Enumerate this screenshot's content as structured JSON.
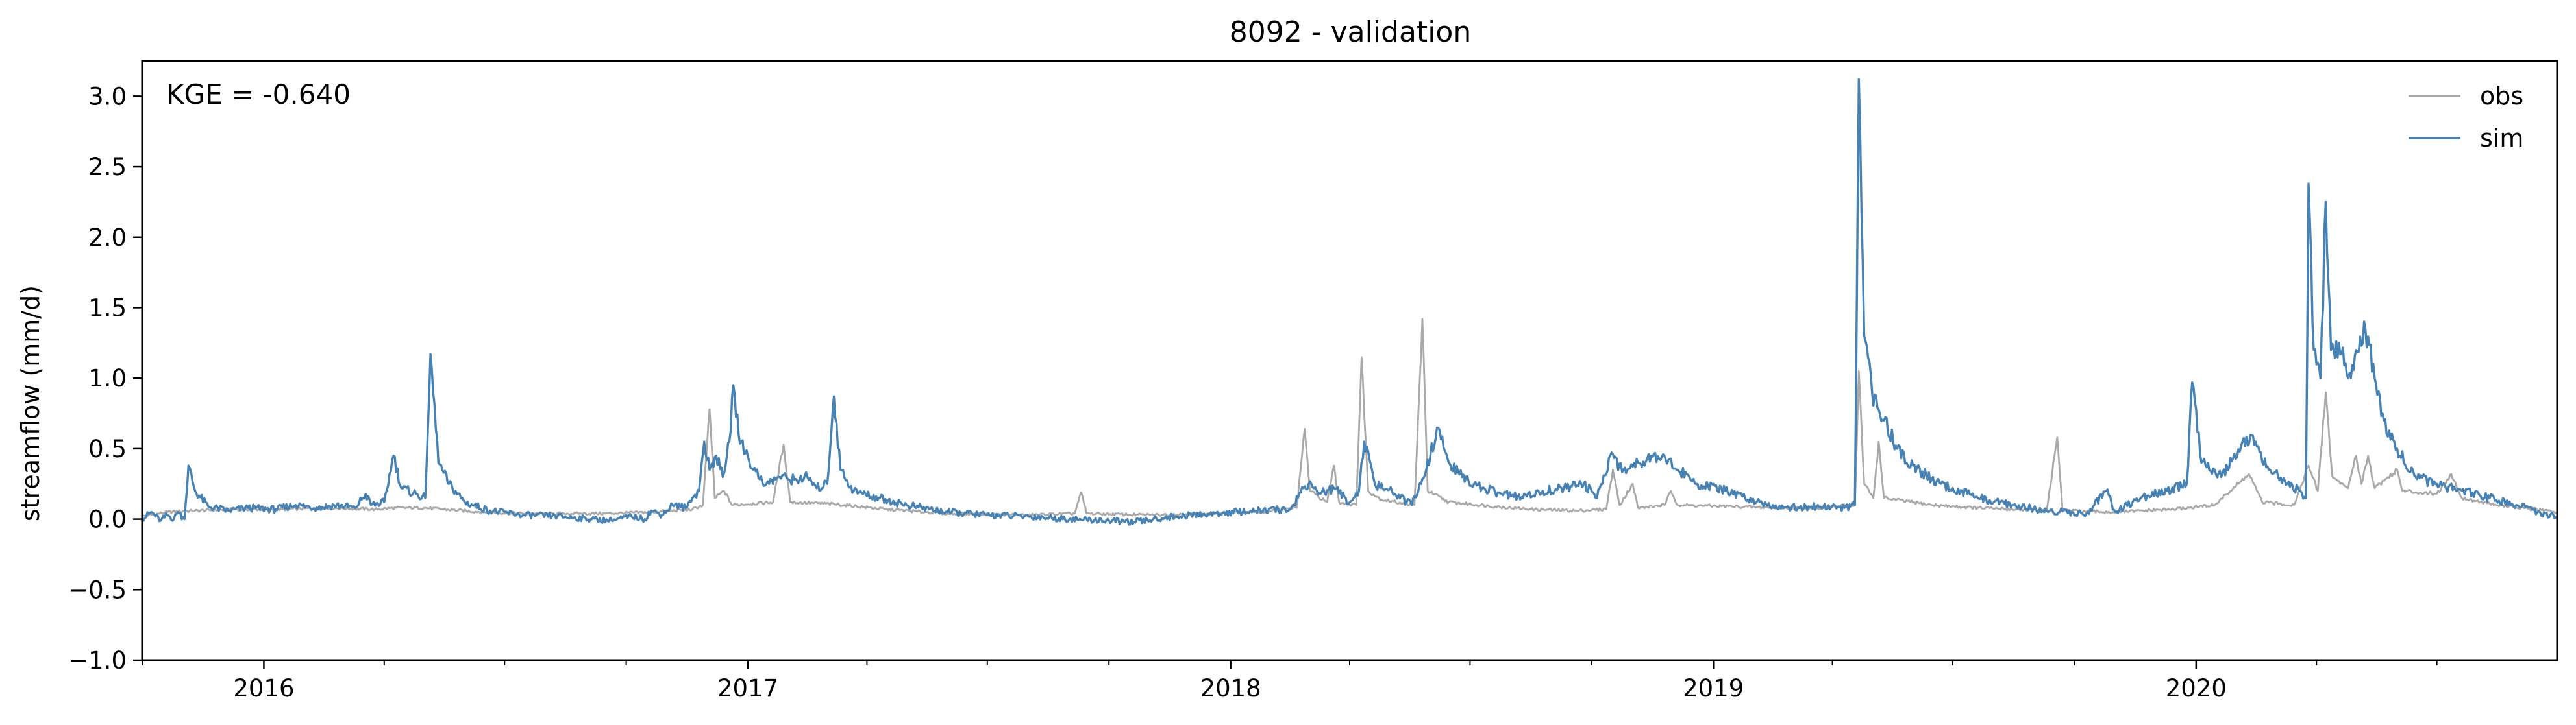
{
  "chart_data": {
    "type": "line",
    "title": "8092 - validation",
    "xlabel": "",
    "ylabel": "streamflow (mm/d)",
    "annotation": "KGE = -0.640",
    "x_start": "2015-10-01",
    "x_end": "2020-09-30",
    "xlim": [
      "2015-10-01",
      "2020-09-30"
    ],
    "ylim": [
      -1.0,
      3.25
    ],
    "x_ticks": [
      "2016-01-01",
      "2017-01-01",
      "2018-01-01",
      "2019-01-01",
      "2020-01-01"
    ],
    "x_tick_labels": [
      "2016",
      "2017",
      "2018",
      "2019",
      "2020"
    ],
    "y_ticks": [
      -1.0,
      -0.5,
      0.0,
      0.5,
      1.0,
      1.5,
      2.0,
      2.5,
      3.0
    ],
    "y_tick_labels": [
      "−1.0",
      "−0.5",
      "0.0",
      "0.5",
      "1.0",
      "1.5",
      "2.0",
      "2.5",
      "3.0"
    ],
    "grid": false,
    "legend_position": "top-right",
    "series": [
      {
        "name": "obs",
        "color": "#a9a9a9",
        "points": [
          [
            "2015-10-01",
            0.02
          ],
          [
            "2015-10-20",
            0.05
          ],
          [
            "2015-11-10",
            0.06
          ],
          [
            "2015-12-10",
            0.07
          ],
          [
            "2016-01-15",
            0.07
          ],
          [
            "2016-02-20",
            0.08
          ],
          [
            "2016-03-25",
            0.07
          ],
          [
            "2016-04-10",
            0.08
          ],
          [
            "2016-05-01",
            0.08
          ],
          [
            "2016-05-15",
            0.07
          ],
          [
            "2016-06-15",
            0.05
          ],
          [
            "2016-07-15",
            0.04
          ],
          [
            "2016-08-15",
            0.04
          ],
          [
            "2016-09-15",
            0.04
          ],
          [
            "2016-10-20",
            0.05
          ],
          [
            "2016-11-20",
            0.07
          ],
          [
            "2016-11-28",
            0.1
          ],
          [
            "2016-12-03",
            0.78
          ],
          [
            "2016-12-07",
            0.15
          ],
          [
            "2016-12-14",
            0.2
          ],
          [
            "2016-12-20",
            0.1
          ],
          [
            "2017-01-20",
            0.12
          ],
          [
            "2017-01-28",
            0.53
          ],
          [
            "2017-02-02",
            0.12
          ],
          [
            "2017-03-01",
            0.11
          ],
          [
            "2017-03-15",
            0.1
          ],
          [
            "2017-04-15",
            0.07
          ],
          [
            "2017-06-01",
            0.04
          ],
          [
            "2017-08-01",
            0.03
          ],
          [
            "2017-09-05",
            0.04
          ],
          [
            "2017-09-10",
            0.19
          ],
          [
            "2017-09-14",
            0.04
          ],
          [
            "2017-11-01",
            0.03
          ],
          [
            "2017-12-15",
            0.04
          ],
          [
            "2018-01-20",
            0.05
          ],
          [
            "2018-02-20",
            0.08
          ],
          [
            "2018-02-26",
            0.64
          ],
          [
            "2018-03-02",
            0.2
          ],
          [
            "2018-03-15",
            0.12
          ],
          [
            "2018-03-20",
            0.38
          ],
          [
            "2018-03-24",
            0.12
          ],
          [
            "2018-04-06",
            0.1
          ],
          [
            "2018-04-10",
            1.15
          ],
          [
            "2018-04-15",
            0.2
          ],
          [
            "2018-04-25",
            0.14
          ],
          [
            "2018-05-20",
            0.1
          ],
          [
            "2018-05-26",
            1.42
          ],
          [
            "2018-05-30",
            0.2
          ],
          [
            "2018-06-15",
            0.12
          ],
          [
            "2018-07-20",
            0.09
          ],
          [
            "2018-08-15",
            0.07
          ],
          [
            "2018-09-20",
            0.06
          ],
          [
            "2018-10-12",
            0.07
          ],
          [
            "2018-10-17",
            0.35
          ],
          [
            "2018-10-22",
            0.1
          ],
          [
            "2018-11-01",
            0.25
          ],
          [
            "2018-11-05",
            0.08
          ],
          [
            "2018-11-25",
            0.1
          ],
          [
            "2018-11-30",
            0.2
          ],
          [
            "2018-12-05",
            0.1
          ],
          [
            "2019-01-15",
            0.09
          ],
          [
            "2019-02-20",
            0.08
          ],
          [
            "2019-03-20",
            0.08
          ],
          [
            "2019-04-18",
            0.1
          ],
          [
            "2019-04-21",
            1.05
          ],
          [
            "2019-04-25",
            0.25
          ],
          [
            "2019-05-02",
            0.15
          ],
          [
            "2019-05-06",
            0.55
          ],
          [
            "2019-05-10",
            0.15
          ],
          [
            "2019-06-15",
            0.1
          ],
          [
            "2019-07-20",
            0.08
          ],
          [
            "2019-09-10",
            0.06
          ],
          [
            "2019-09-18",
            0.58
          ],
          [
            "2019-09-22",
            0.06
          ],
          [
            "2019-10-30",
            0.05
          ],
          [
            "2019-12-15",
            0.07
          ],
          [
            "2020-01-15",
            0.1
          ],
          [
            "2020-02-10",
            0.32
          ],
          [
            "2020-02-20",
            0.12
          ],
          [
            "2020-03-15",
            0.1
          ],
          [
            "2020-03-26",
            0.38
          ],
          [
            "2020-04-02",
            0.2
          ],
          [
            "2020-04-08",
            0.9
          ],
          [
            "2020-04-13",
            0.3
          ],
          [
            "2020-04-25",
            0.22
          ],
          [
            "2020-05-01",
            0.45
          ],
          [
            "2020-05-05",
            0.25
          ],
          [
            "2020-05-10",
            0.45
          ],
          [
            "2020-05-15",
            0.22
          ],
          [
            "2020-06-01",
            0.35
          ],
          [
            "2020-06-05",
            0.2
          ],
          [
            "2020-07-01",
            0.18
          ],
          [
            "2020-07-12",
            0.32
          ],
          [
            "2020-07-20",
            0.15
          ],
          [
            "2020-08-15",
            0.1
          ],
          [
            "2020-09-30",
            0.05
          ]
        ]
      },
      {
        "name": "sim",
        "color": "#4682b4",
        "points": [
          [
            "2015-10-01",
            0.0
          ],
          [
            "2015-10-08",
            0.05
          ],
          [
            "2015-10-15",
            -0.01
          ],
          [
            "2015-10-20",
            0.03
          ],
          [
            "2015-10-25",
            0.0
          ],
          [
            "2015-10-28",
            0.05
          ],
          [
            "2015-11-02",
            0.0
          ],
          [
            "2015-11-05",
            0.38
          ],
          [
            "2015-11-10",
            0.2
          ],
          [
            "2015-11-20",
            0.09
          ],
          [
            "2015-12-05",
            0.06
          ],
          [
            "2015-12-20",
            0.08
          ],
          [
            "2016-01-10",
            0.07
          ],
          [
            "2016-01-25",
            0.1
          ],
          [
            "2016-02-10",
            0.08
          ],
          [
            "2016-02-25",
            0.1
          ],
          [
            "2016-03-10",
            0.08
          ],
          [
            "2016-03-18",
            0.18
          ],
          [
            "2016-03-22",
            0.1
          ],
          [
            "2016-04-01",
            0.12
          ],
          [
            "2016-04-08",
            0.45
          ],
          [
            "2016-04-14",
            0.22
          ],
          [
            "2016-04-25",
            0.18
          ],
          [
            "2016-05-02",
            0.15
          ],
          [
            "2016-05-06",
            1.17
          ],
          [
            "2016-05-12",
            0.4
          ],
          [
            "2016-05-20",
            0.25
          ],
          [
            "2016-06-01",
            0.12
          ],
          [
            "2016-06-20",
            0.06
          ],
          [
            "2016-07-15",
            0.03
          ],
          [
            "2016-08-10",
            0.02
          ],
          [
            "2016-09-05",
            0.0
          ],
          [
            "2016-09-20",
            -0.01
          ],
          [
            "2016-10-05",
            0.02
          ],
          [
            "2016-10-15",
            0.0
          ],
          [
            "2016-10-20",
            0.06
          ],
          [
            "2016-10-28",
            0.03
          ],
          [
            "2016-11-05",
            0.1
          ],
          [
            "2016-11-15",
            0.08
          ],
          [
            "2016-11-20",
            0.15
          ],
          [
            "2016-11-25",
            0.2
          ],
          [
            "2016-11-29",
            0.55
          ],
          [
            "2016-12-03",
            0.35
          ],
          [
            "2016-12-08",
            0.45
          ],
          [
            "2016-12-13",
            0.3
          ],
          [
            "2016-12-18",
            0.55
          ],
          [
            "2016-12-21",
            0.95
          ],
          [
            "2016-12-25",
            0.6
          ],
          [
            "2017-01-05",
            0.35
          ],
          [
            "2017-01-15",
            0.25
          ],
          [
            "2017-01-25",
            0.3
          ],
          [
            "2017-02-05",
            0.28
          ],
          [
            "2017-02-15",
            0.3
          ],
          [
            "2017-02-22",
            0.22
          ],
          [
            "2017-03-02",
            0.25
          ],
          [
            "2017-03-07",
            0.87
          ],
          [
            "2017-03-12",
            0.35
          ],
          [
            "2017-03-22",
            0.2
          ],
          [
            "2017-04-10",
            0.15
          ],
          [
            "2017-05-01",
            0.1
          ],
          [
            "2017-06-01",
            0.05
          ],
          [
            "2017-07-01",
            0.03
          ],
          [
            "2017-08-01",
            0.02
          ],
          [
            "2017-09-01",
            0.0
          ],
          [
            "2017-10-01",
            -0.01
          ],
          [
            "2017-10-20",
            -0.02
          ],
          [
            "2017-11-20",
            0.02
          ],
          [
            "2017-12-20",
            0.04
          ],
          [
            "2018-01-20",
            0.06
          ],
          [
            "2018-02-15",
            0.07
          ],
          [
            "2018-02-25",
            0.22
          ],
          [
            "2018-03-03",
            0.25
          ],
          [
            "2018-03-10",
            0.18
          ],
          [
            "2018-03-20",
            0.22
          ],
          [
            "2018-04-01",
            0.12
          ],
          [
            "2018-04-08",
            0.2
          ],
          [
            "2018-04-12",
            0.55
          ],
          [
            "2018-04-20",
            0.25
          ],
          [
            "2018-05-05",
            0.18
          ],
          [
            "2018-05-18",
            0.1
          ],
          [
            "2018-05-25",
            0.25
          ],
          [
            "2018-06-01",
            0.45
          ],
          [
            "2018-06-06",
            0.65
          ],
          [
            "2018-06-15",
            0.4
          ],
          [
            "2018-06-25",
            0.3
          ],
          [
            "2018-07-10",
            0.22
          ],
          [
            "2018-07-25",
            0.18
          ],
          [
            "2018-08-10",
            0.15
          ],
          [
            "2018-08-25",
            0.2
          ],
          [
            "2018-09-10",
            0.22
          ],
          [
            "2018-09-25",
            0.25
          ],
          [
            "2018-10-05",
            0.15
          ],
          [
            "2018-10-15",
            0.45
          ],
          [
            "2018-10-25",
            0.35
          ],
          [
            "2018-11-05",
            0.4
          ],
          [
            "2018-11-15",
            0.45
          ],
          [
            "2018-11-25",
            0.45
          ],
          [
            "2018-12-05",
            0.35
          ],
          [
            "2018-12-20",
            0.25
          ],
          [
            "2019-01-10",
            0.2
          ],
          [
            "2019-01-25",
            0.15
          ],
          [
            "2019-02-15",
            0.1
          ],
          [
            "2019-03-01",
            0.08
          ],
          [
            "2019-03-20",
            0.09
          ],
          [
            "2019-04-10",
            0.08
          ],
          [
            "2019-04-18",
            0.1
          ],
          [
            "2019-04-21",
            3.12
          ],
          [
            "2019-04-25",
            1.3
          ],
          [
            "2019-05-01",
            0.9
          ],
          [
            "2019-05-10",
            0.7
          ],
          [
            "2019-05-20",
            0.5
          ],
          [
            "2019-06-01",
            0.38
          ],
          [
            "2019-06-15",
            0.28
          ],
          [
            "2019-07-01",
            0.22
          ],
          [
            "2019-07-20",
            0.15
          ],
          [
            "2019-08-15",
            0.1
          ],
          [
            "2019-09-10",
            0.06
          ],
          [
            "2019-10-10",
            0.04
          ],
          [
            "2019-10-25",
            0.2
          ],
          [
            "2019-11-01",
            0.05
          ],
          [
            "2019-11-20",
            0.15
          ],
          [
            "2019-12-10",
            0.2
          ],
          [
            "2019-12-25",
            0.25
          ],
          [
            "2019-12-29",
            0.97
          ],
          [
            "2020-01-05",
            0.4
          ],
          [
            "2020-01-20",
            0.3
          ],
          [
            "2020-02-05",
            0.55
          ],
          [
            "2020-02-15",
            0.55
          ],
          [
            "2020-02-25",
            0.35
          ],
          [
            "2020-03-10",
            0.25
          ],
          [
            "2020-03-20",
            0.2
          ],
          [
            "2020-03-24",
            0.15
          ],
          [
            "2020-03-26",
            2.38
          ],
          [
            "2020-03-30",
            1.2
          ],
          [
            "2020-04-04",
            1.0
          ],
          [
            "2020-04-08",
            2.25
          ],
          [
            "2020-04-12",
            1.2
          ],
          [
            "2020-04-18",
            1.25
          ],
          [
            "2020-04-25",
            1.0
          ],
          [
            "2020-05-01",
            1.2
          ],
          [
            "2020-05-08",
            1.35
          ],
          [
            "2020-05-15",
            1.0
          ],
          [
            "2020-05-22",
            0.7
          ],
          [
            "2020-06-01",
            0.5
          ],
          [
            "2020-06-15",
            0.3
          ],
          [
            "2020-07-01",
            0.25
          ],
          [
            "2020-07-20",
            0.2
          ],
          [
            "2020-08-10",
            0.15
          ],
          [
            "2020-08-30",
            0.1
          ],
          [
            "2020-09-15",
            0.05
          ],
          [
            "2020-09-30",
            0.02
          ]
        ]
      }
    ]
  }
}
